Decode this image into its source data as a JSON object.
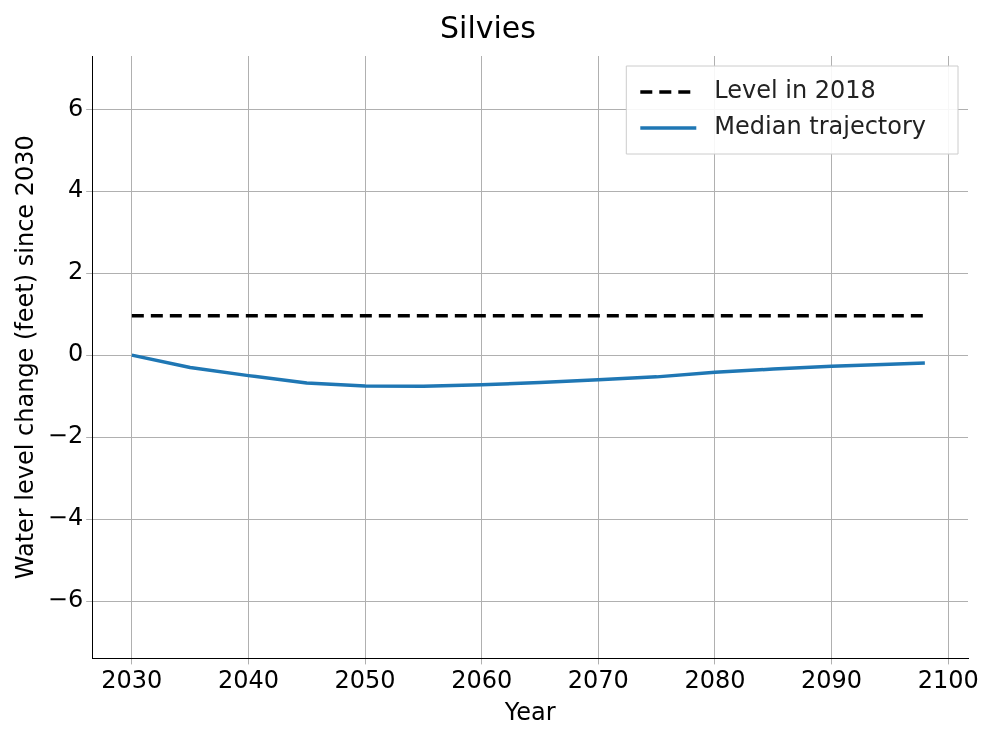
{
  "chart_data": {
    "type": "line",
    "title": "Silvies",
    "xlabel": "Year",
    "ylabel": "Water level change (feet) since 2030",
    "xlim": [
      2026.6,
      2101.7
    ],
    "xticks": [
      2030,
      2040,
      2050,
      2060,
      2070,
      2080,
      2090,
      2100
    ],
    "ylim": [
      -7.4,
      7.3
    ],
    "yticks": [
      -6,
      -4,
      -2,
      0,
      2,
      4,
      6
    ],
    "grid": true,
    "legend": "top right",
    "series": [
      {
        "name": "Level in 2018",
        "color": "#000000",
        "line_style": "dashed",
        "x": [
          2030,
          2098
        ],
        "values": [
          0.96,
          0.96
        ]
      },
      {
        "name": "Median trajectory",
        "color": "#1f77b4",
        "line_style": "solid",
        "x": [
          2030,
          2035,
          2040,
          2045,
          2050,
          2055,
          2060,
          2065,
          2070,
          2075,
          2080,
          2085,
          2090,
          2095,
          2098
        ],
        "values": [
          0,
          -0.3,
          -0.5,
          -0.68,
          -0.75,
          -0.76,
          -0.72,
          -0.67,
          -0.6,
          -0.53,
          -0.42,
          -0.34,
          -0.27,
          -0.22,
          -0.19
        ]
      }
    ]
  }
}
